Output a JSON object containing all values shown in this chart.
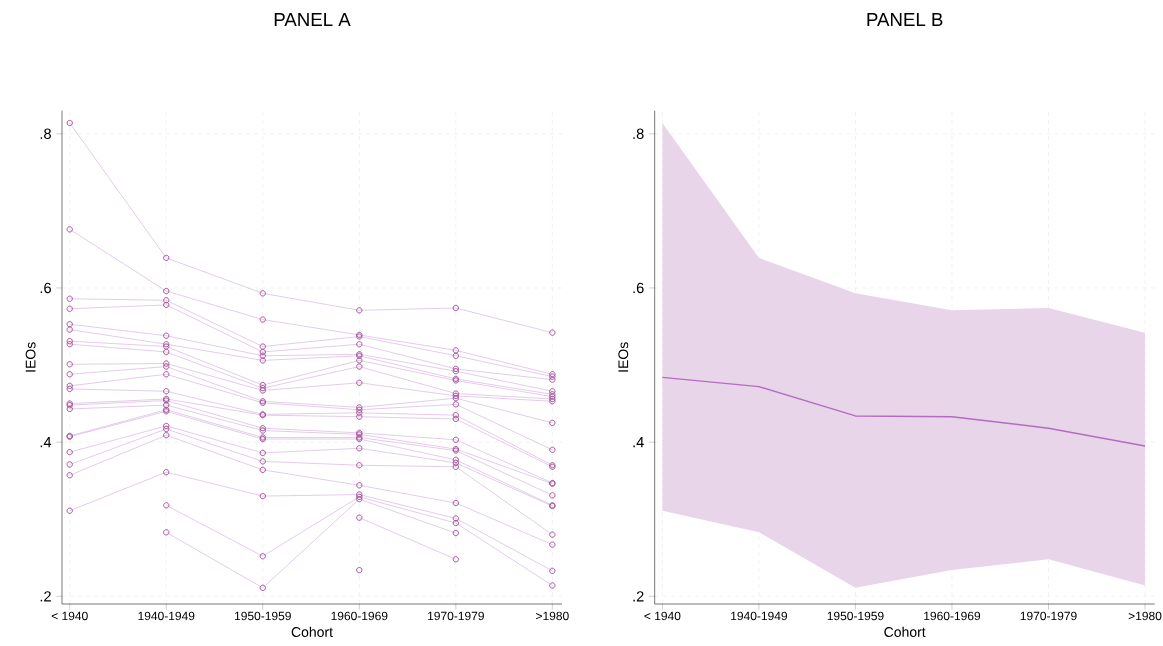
{
  "chart_data": [
    {
      "type": "line",
      "title": "PANEL A",
      "xlabel": "Cohort",
      "ylabel": "IEOs",
      "categories": [
        "< 1940",
        "1940-1949",
        "1950-1959",
        "1960-1969",
        "1970-1979",
        ">1980"
      ],
      "ylim": [
        0.19,
        0.83
      ],
      "yticks": [
        {
          "value": 0.2,
          "label": ".2"
        },
        {
          "value": 0.4,
          "label": ".4"
        },
        {
          "value": 0.6,
          "label": ".6"
        },
        {
          "value": 0.8,
          "label": ".8"
        }
      ],
      "grid": true,
      "marker": "circle",
      "series": [
        {
          "color": "#a04896",
          "values": [
            0.814,
            0.639,
            0.593,
            0.571,
            0.574,
            0.542
          ]
        },
        {
          "color": "#a04896",
          "values": [
            0.676,
            0.596,
            0.559,
            0.539,
            0.519,
            0.488
          ]
        },
        {
          "color": "#a04896",
          "values": [
            0.586,
            0.584,
            0.524,
            0.537,
            0.512,
            0.485
          ]
        },
        {
          "color": "#a04896",
          "values": [
            0.573,
            0.578,
            0.517,
            0.527,
            0.495,
            0.481
          ]
        },
        {
          "color": "#a04896",
          "values": [
            0.553,
            0.538,
            0.512,
            0.514,
            0.492,
            0.466
          ]
        },
        {
          "color": "#a04896",
          "values": [
            0.546,
            0.527,
            0.506,
            0.512,
            0.482,
            0.462
          ]
        },
        {
          "color": "#a04896",
          "values": [
            0.531,
            0.524,
            0.474,
            0.506,
            0.48,
            0.459
          ]
        },
        {
          "color": "#a04896",
          "values": [
            0.527,
            0.517,
            0.47,
            0.498,
            0.463,
            0.456
          ]
        },
        {
          "color": "#a04896",
          "values": [
            0.501,
            0.502,
            0.467,
            0.477,
            0.46,
            0.453
          ]
        },
        {
          "color": "#a04896",
          "values": [
            0.488,
            0.498,
            0.453,
            0.445,
            0.457,
            0.425
          ]
        },
        {
          "color": "#a04896",
          "values": [
            0.473,
            0.488,
            0.451,
            0.442,
            0.449,
            0.39
          ]
        },
        {
          "color": "#a04896",
          "values": [
            0.469,
            0.466,
            0.436,
            0.438,
            0.435,
            0.37
          ]
        },
        {
          "color": "#a04896",
          "values": [
            0.45,
            0.456,
            0.435,
            0.433,
            0.43,
            0.368
          ]
        },
        {
          "color": "#a04896",
          "values": [
            0.448,
            0.454,
            0.418,
            0.412,
            0.403,
            0.347
          ]
        },
        {
          "color": "#a04896",
          "values": [
            0.443,
            0.448,
            0.415,
            0.41,
            0.391,
            0.346
          ]
        },
        {
          "color": "#a04896",
          "values": [
            0.408,
            0.442,
            0.406,
            0.406,
            0.389,
            0.331
          ]
        },
        {
          "color": "#a04896",
          "values": [
            0.407,
            0.44,
            0.404,
            0.404,
            0.377,
            0.318
          ]
        },
        {
          "color": "#a04896",
          "values": [
            0.387,
            0.421,
            0.386,
            0.392,
            0.373,
            0.317
          ]
        },
        {
          "color": "#a04896",
          "values": [
            0.371,
            0.417,
            0.375,
            0.37,
            0.368,
            0.28
          ]
        },
        {
          "color": "#a04896",
          "values": [
            0.357,
            0.409,
            0.364,
            0.344,
            0.321,
            0.267
          ]
        },
        {
          "color": "#a04896",
          "values": [
            0.311,
            0.361,
            0.33,
            0.332,
            0.301,
            0.233
          ]
        },
        {
          "color": "#a04896",
          "values": [
            null,
            0.318,
            0.252,
            0.329,
            0.295,
            0.214
          ]
        },
        {
          "color": "#a04896",
          "values": [
            null,
            0.283,
            0.211,
            0.326,
            0.282,
            null
          ]
        },
        {
          "color": "#a04896",
          "values": [
            null,
            null,
            null,
            0.302,
            0.248,
            null
          ]
        },
        {
          "color": "#a04896",
          "values": [
            null,
            null,
            null,
            0.234,
            null,
            null
          ]
        }
      ]
    },
    {
      "type": "line",
      "title": "PANEL B",
      "xlabel": "Cohort",
      "ylabel": "IEOs",
      "categories": [
        "< 1940",
        "1940-1949",
        "1950-1959",
        "1960-1969",
        "1970-1979",
        ">1980"
      ],
      "ylim": [
        0.19,
        0.83
      ],
      "yticks": [
        {
          "value": 0.2,
          "label": ".2"
        },
        {
          "value": 0.4,
          "label": ".4"
        },
        {
          "value": 0.6,
          "label": ".6"
        },
        {
          "value": 0.8,
          "label": ".8"
        }
      ],
      "grid": true,
      "series": [
        {
          "color": "#b46cc0",
          "values": [
            0.484,
            0.472,
            0.434,
            0.433,
            0.418,
            0.395
          ],
          "lower": [
            0.311,
            0.283,
            0.211,
            0.234,
            0.248,
            0.214
          ],
          "upper": [
            0.814,
            0.639,
            0.593,
            0.571,
            0.574,
            0.542
          ]
        }
      ]
    }
  ]
}
